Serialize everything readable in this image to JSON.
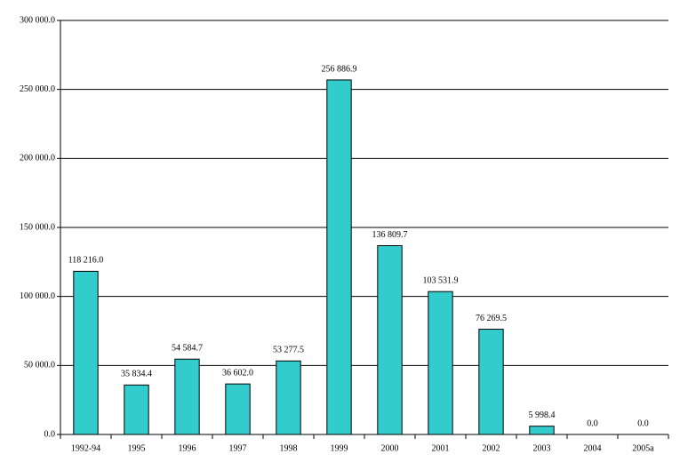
{
  "chart_data": {
    "type": "bar",
    "categories": [
      "1992-94",
      "1995",
      "1996",
      "1997",
      "1998",
      "1999",
      "2000",
      "2001",
      "2002",
      "2003",
      "2004",
      "2005a"
    ],
    "values": [
      118216.0,
      35834.4,
      54584.7,
      36602.0,
      53277.5,
      256886.9,
      136809.7,
      103531.9,
      76269.5,
      5998.4,
      0.0,
      0.0
    ],
    "value_labels": [
      "118 216.0",
      "35 834.4",
      "54 584.7",
      "36 602.0",
      "53 277.5",
      "256 886.9",
      "136 809.7",
      "103 531.9",
      "76 269.5",
      "5 998.4",
      "0.0",
      "0.0"
    ],
    "color": "#33cccc",
    "ylim": [
      0,
      300000
    ],
    "yticks": [
      {
        "value": 0,
        "label": "0.0"
      },
      {
        "value": 50000,
        "label": "50 000.0"
      },
      {
        "value": 100000,
        "label": "100 000.0"
      },
      {
        "value": 150000,
        "label": "150 000.0"
      },
      {
        "value": 200000,
        "label": "200 000.0"
      },
      {
        "value": 250000,
        "label": "250 000.0"
      },
      {
        "value": 300000,
        "label": "300 000.0"
      }
    ],
    "grid": true
  }
}
